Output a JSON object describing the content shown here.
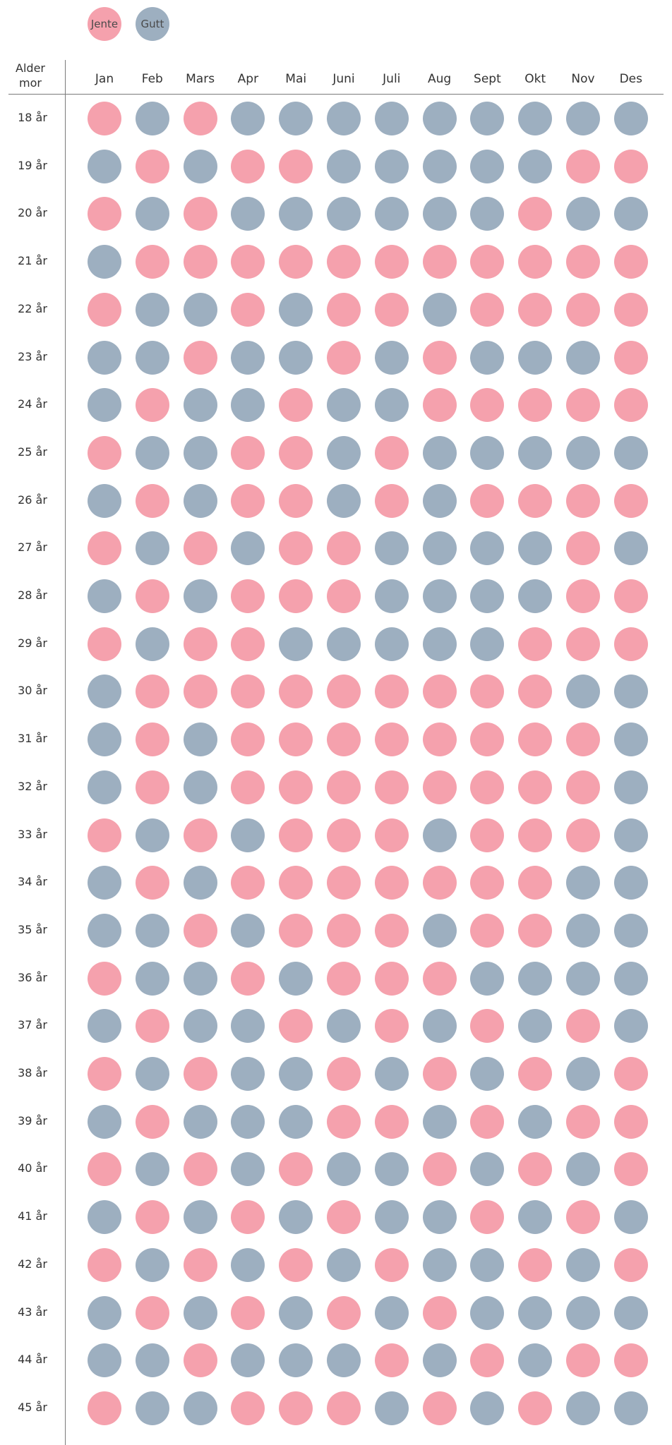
{
  "colors": {
    "Jente": "#f5a1ad",
    "Gutt": "#9dafc0"
  },
  "legend": [
    {
      "key": "Jente",
      "label": "Jente"
    },
    {
      "key": "Gutt",
      "label": "Gutt"
    }
  ],
  "chart_data": {
    "type": "table",
    "row_header": "Alder mor",
    "row_header_lines": [
      "Alder",
      "mor"
    ],
    "columns": [
      "Jan",
      "Feb",
      "Mars",
      "Apr",
      "Mai",
      "Juni",
      "Juli",
      "Aug",
      "Sept",
      "Okt",
      "Nov",
      "Des"
    ],
    "rows": [
      {
        "label": "18 år",
        "values": [
          "Jente",
          "Gutt",
          "Jente",
          "Gutt",
          "Gutt",
          "Gutt",
          "Gutt",
          "Gutt",
          "Gutt",
          "Gutt",
          "Gutt",
          "Gutt"
        ]
      },
      {
        "label": "19 år",
        "values": [
          "Gutt",
          "Jente",
          "Gutt",
          "Jente",
          "Jente",
          "Gutt",
          "Gutt",
          "Gutt",
          "Gutt",
          "Gutt",
          "Jente",
          "Jente"
        ]
      },
      {
        "label": "20 år",
        "values": [
          "Jente",
          "Gutt",
          "Jente",
          "Gutt",
          "Gutt",
          "Gutt",
          "Gutt",
          "Gutt",
          "Gutt",
          "Jente",
          "Gutt",
          "Gutt"
        ]
      },
      {
        "label": "21 år",
        "values": [
          "Gutt",
          "Jente",
          "Jente",
          "Jente",
          "Jente",
          "Jente",
          "Jente",
          "Jente",
          "Jente",
          "Jente",
          "Jente",
          "Jente"
        ]
      },
      {
        "label": "22 år",
        "values": [
          "Jente",
          "Gutt",
          "Gutt",
          "Jente",
          "Gutt",
          "Jente",
          "Jente",
          "Gutt",
          "Jente",
          "Jente",
          "Jente",
          "Jente"
        ]
      },
      {
        "label": "23 år",
        "values": [
          "Gutt",
          "Gutt",
          "Jente",
          "Gutt",
          "Gutt",
          "Jente",
          "Gutt",
          "Jente",
          "Gutt",
          "Gutt",
          "Gutt",
          "Jente"
        ]
      },
      {
        "label": "24 år",
        "values": [
          "Gutt",
          "Jente",
          "Gutt",
          "Gutt",
          "Jente",
          "Gutt",
          "Gutt",
          "Jente",
          "Jente",
          "Jente",
          "Jente",
          "Jente"
        ]
      },
      {
        "label": "25 år",
        "values": [
          "Jente",
          "Gutt",
          "Gutt",
          "Jente",
          "Jente",
          "Gutt",
          "Jente",
          "Gutt",
          "Gutt",
          "Gutt",
          "Gutt",
          "Gutt"
        ]
      },
      {
        "label": "26 år",
        "values": [
          "Gutt",
          "Jente",
          "Gutt",
          "Jente",
          "Jente",
          "Gutt",
          "Jente",
          "Gutt",
          "Jente",
          "Jente",
          "Jente",
          "Jente"
        ]
      },
      {
        "label": "27 år",
        "values": [
          "Jente",
          "Gutt",
          "Jente",
          "Gutt",
          "Jente",
          "Jente",
          "Gutt",
          "Gutt",
          "Gutt",
          "Gutt",
          "Jente",
          "Gutt"
        ]
      },
      {
        "label": "28 år",
        "values": [
          "Gutt",
          "Jente",
          "Gutt",
          "Jente",
          "Jente",
          "Jente",
          "Gutt",
          "Gutt",
          "Gutt",
          "Gutt",
          "Jente",
          "Jente"
        ]
      },
      {
        "label": "29 år",
        "values": [
          "Jente",
          "Gutt",
          "Jente",
          "Jente",
          "Gutt",
          "Gutt",
          "Gutt",
          "Gutt",
          "Gutt",
          "Jente",
          "Jente",
          "Jente"
        ]
      },
      {
        "label": "30 år",
        "values": [
          "Gutt",
          "Jente",
          "Jente",
          "Jente",
          "Jente",
          "Jente",
          "Jente",
          "Jente",
          "Jente",
          "Jente",
          "Gutt",
          "Gutt"
        ]
      },
      {
        "label": "31 år",
        "values": [
          "Gutt",
          "Jente",
          "Gutt",
          "Jente",
          "Jente",
          "Jente",
          "Jente",
          "Jente",
          "Jente",
          "Jente",
          "Jente",
          "Gutt"
        ]
      },
      {
        "label": "32 år",
        "values": [
          "Gutt",
          "Jente",
          "Gutt",
          "Jente",
          "Jente",
          "Jente",
          "Jente",
          "Jente",
          "Jente",
          "Jente",
          "Jente",
          "Gutt"
        ]
      },
      {
        "label": "33 år",
        "values": [
          "Jente",
          "Gutt",
          "Jente",
          "Gutt",
          "Jente",
          "Jente",
          "Jente",
          "Gutt",
          "Jente",
          "Jente",
          "Jente",
          "Gutt"
        ]
      },
      {
        "label": "34 år",
        "values": [
          "Gutt",
          "Jente",
          "Gutt",
          "Jente",
          "Jente",
          "Jente",
          "Jente",
          "Jente",
          "Jente",
          "Jente",
          "Gutt",
          "Gutt"
        ]
      },
      {
        "label": "35 år",
        "values": [
          "Gutt",
          "Gutt",
          "Jente",
          "Gutt",
          "Jente",
          "Jente",
          "Jente",
          "Gutt",
          "Jente",
          "Jente",
          "Gutt",
          "Gutt"
        ]
      },
      {
        "label": "36 år",
        "values": [
          "Jente",
          "Gutt",
          "Gutt",
          "Jente",
          "Gutt",
          "Jente",
          "Jente",
          "Jente",
          "Gutt",
          "Gutt",
          "Gutt",
          "Gutt"
        ]
      },
      {
        "label": "37 år",
        "values": [
          "Gutt",
          "Jente",
          "Gutt",
          "Gutt",
          "Jente",
          "Gutt",
          "Jente",
          "Gutt",
          "Jente",
          "Gutt",
          "Jente",
          "Gutt"
        ]
      },
      {
        "label": "38 år",
        "values": [
          "Jente",
          "Gutt",
          "Jente",
          "Gutt",
          "Gutt",
          "Jente",
          "Gutt",
          "Jente",
          "Gutt",
          "Jente",
          "Gutt",
          "Jente"
        ]
      },
      {
        "label": "39 år",
        "values": [
          "Gutt",
          "Jente",
          "Gutt",
          "Gutt",
          "Gutt",
          "Jente",
          "Jente",
          "Gutt",
          "Jente",
          "Gutt",
          "Jente",
          "Jente"
        ]
      },
      {
        "label": "40 år",
        "values": [
          "Jente",
          "Gutt",
          "Jente",
          "Gutt",
          "Jente",
          "Gutt",
          "Gutt",
          "Jente",
          "Gutt",
          "Jente",
          "Gutt",
          "Jente"
        ]
      },
      {
        "label": "41 år",
        "values": [
          "Gutt",
          "Jente",
          "Gutt",
          "Jente",
          "Gutt",
          "Jente",
          "Gutt",
          "Gutt",
          "Jente",
          "Gutt",
          "Jente",
          "Gutt"
        ]
      },
      {
        "label": "42 år",
        "values": [
          "Jente",
          "Gutt",
          "Jente",
          "Gutt",
          "Jente",
          "Gutt",
          "Jente",
          "Gutt",
          "Gutt",
          "Jente",
          "Gutt",
          "Jente"
        ]
      },
      {
        "label": "43 år",
        "values": [
          "Gutt",
          "Jente",
          "Gutt",
          "Jente",
          "Gutt",
          "Jente",
          "Gutt",
          "Jente",
          "Gutt",
          "Gutt",
          "Gutt",
          "Gutt"
        ]
      },
      {
        "label": "44 år",
        "values": [
          "Gutt",
          "Gutt",
          "Jente",
          "Gutt",
          "Gutt",
          "Gutt",
          "Jente",
          "Gutt",
          "Jente",
          "Gutt",
          "Jente",
          "Jente"
        ]
      },
      {
        "label": "45 år",
        "values": [
          "Jente",
          "Gutt",
          "Gutt",
          "Jente",
          "Jente",
          "Jente",
          "Gutt",
          "Jente",
          "Gutt",
          "Jente",
          "Gutt",
          "Gutt"
        ]
      }
    ]
  }
}
